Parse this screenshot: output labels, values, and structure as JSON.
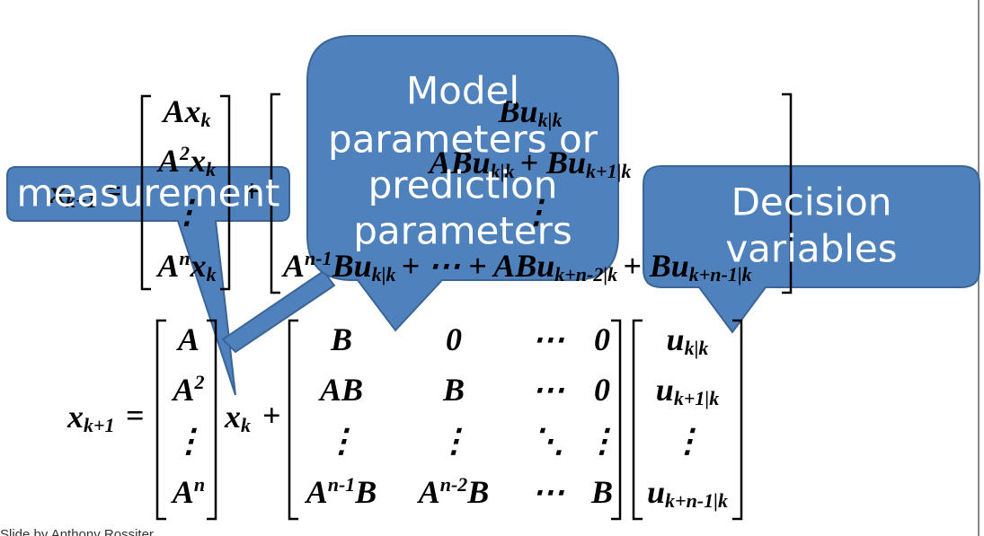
{
  "slide": {
    "eq1": {
      "lhs": [
        "x",
        "k+1"
      ],
      "equals": "=",
      "plus": "+",
      "col": [
        [
          "Ax",
          "k"
        ],
        [
          "A",
          "2",
          "x",
          "k"
        ],
        [
          "⋮"
        ],
        [
          "A",
          "n",
          "x",
          "k"
        ]
      ],
      "rhs": [
        [
          "Bu",
          "k|k"
        ],
        [
          "ABu",
          "k|k",
          "+ Bu",
          "k+1|k"
        ],
        [
          "⋮"
        ],
        [
          "A",
          "n-1",
          "Bu",
          "k|k",
          "+ ⋯ + ABu",
          "k+n-2|k",
          "+ Bu",
          "k+n-1|k"
        ]
      ]
    },
    "eq2": {
      "lhs": [
        "x",
        "k+1"
      ],
      "equals": "=",
      "plus": "+",
      "col": [
        [
          "A"
        ],
        [
          "A",
          "2"
        ],
        [
          "⋮"
        ],
        [
          "A",
          "n"
        ]
      ],
      "xk": [
        "x",
        "k"
      ],
      "matrix": [
        [
          [
            "B"
          ],
          [
            "0"
          ],
          [
            "⋯"
          ],
          [
            "0"
          ]
        ],
        [
          [
            "AB"
          ],
          [
            "B"
          ],
          [
            "⋯"
          ],
          [
            "0"
          ]
        ],
        [
          [
            "⋮"
          ],
          [
            "⋮"
          ],
          [
            "⋱"
          ],
          [
            "⋮"
          ]
        ],
        [
          [
            "A",
            "n-1",
            "B"
          ],
          [
            "A",
            "n-2",
            "B"
          ],
          [
            "⋯"
          ],
          [
            "B"
          ]
        ]
      ],
      "vector": [
        [
          "u",
          "k|k"
        ],
        [
          "u",
          "k+1|k"
        ],
        [
          "⋮"
        ],
        [
          "u",
          "k+n-1|k"
        ]
      ]
    },
    "callouts": {
      "measurement": [
        "measurement"
      ],
      "model": [
        "Model",
        "parameters or",
        "prediction",
        "parameters"
      ],
      "decision": [
        "Decision",
        "variables"
      ]
    },
    "footer": "Slide by Anthony Rossiter"
  }
}
